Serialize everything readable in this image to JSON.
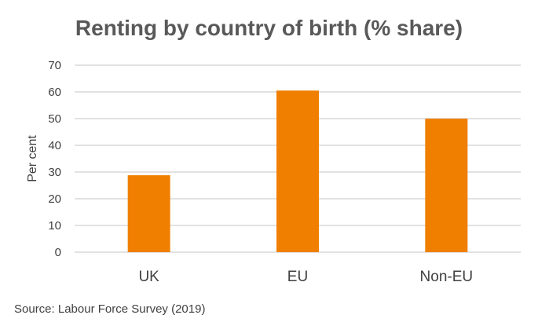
{
  "chart_data": {
    "type": "bar",
    "title": "Renting by country of birth (% share)",
    "categories": [
      "UK",
      "EU",
      "Non-EU"
    ],
    "values": [
      28.8,
      60.5,
      50.0
    ],
    "xlabel": "",
    "ylabel": "Per cent",
    "ylim": [
      0,
      70
    ],
    "yticks": [
      "0",
      "10",
      "20",
      "30",
      "40",
      "50",
      "60",
      "70"
    ],
    "grid": true,
    "bar_color": "#F07F00",
    "source": "Source: Labour Force Survey (2019)"
  }
}
